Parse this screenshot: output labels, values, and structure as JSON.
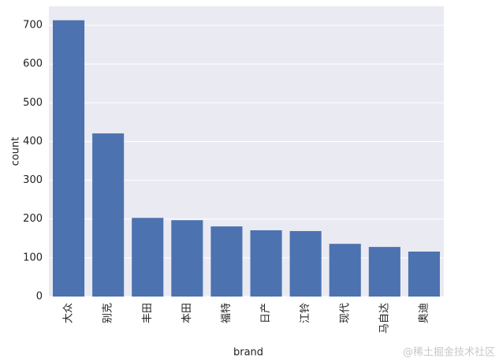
{
  "chart_data": {
    "type": "bar",
    "x_label": "brand",
    "y_label": "count",
    "categories": [
      "大众",
      "别克",
      "丰田",
      "本田",
      "福特",
      "日产",
      "江铃",
      "现代",
      "马自达",
      "奥迪"
    ],
    "values": [
      713,
      421,
      203,
      197,
      181,
      171,
      169,
      136,
      128,
      116
    ],
    "color": "#4c72b0",
    "ylim": [
      0,
      749
    ],
    "yticks": [
      0,
      100,
      200,
      300,
      400,
      500,
      600,
      700
    ],
    "grid": true
  },
  "watermark": "@稀土掘金技术社区"
}
